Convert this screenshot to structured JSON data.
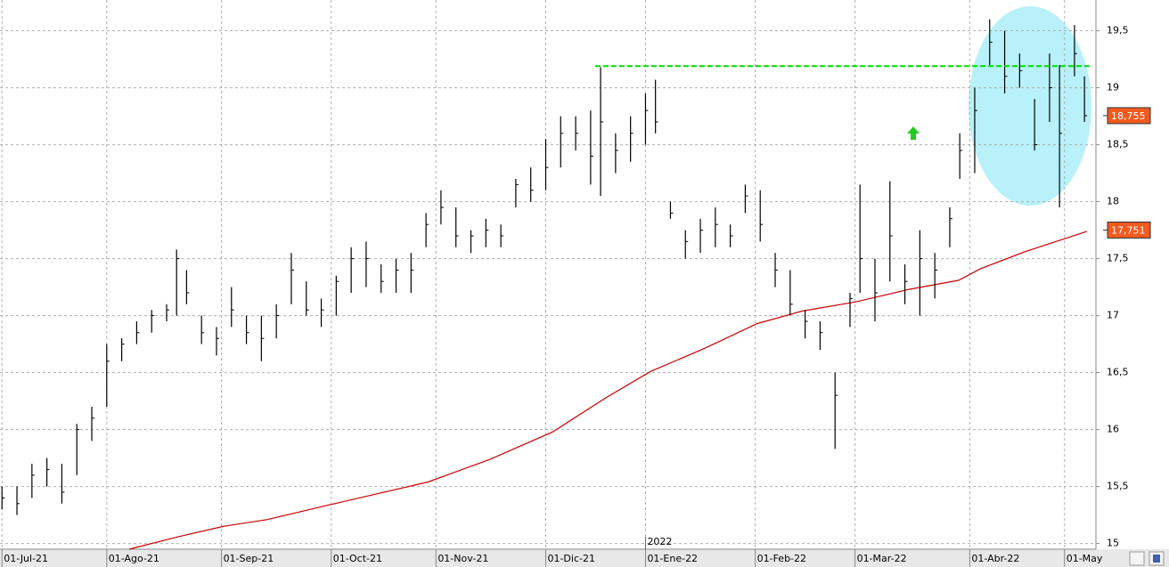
{
  "chart_data": {
    "type": "ohlc",
    "xlim": [
      -0.4,
      219.3
    ],
    "xticks": [
      {
        "value": 0,
        "label": "01-Jul-21"
      },
      {
        "value": 21,
        "label": "01-Ago-21"
      },
      {
        "value": 44,
        "label": "01-Sep-21"
      },
      {
        "value": 66,
        "label": "01-Oct-21"
      },
      {
        "value": 87,
        "label": "01-Nov-21"
      },
      {
        "value": 109,
        "label": "01-Dic-21"
      },
      {
        "value": 129,
        "label": "01-Ene-22"
      },
      {
        "value": 151,
        "label": "01-Feb-22"
      },
      {
        "value": 171,
        "label": "01-Mar-22"
      },
      {
        "value": 194,
        "label": "01-Abr-22"
      },
      {
        "value": 213,
        "label": "01-May"
      }
    ],
    "year_label": "2022",
    "ylim": [
      14.95,
      19.77
    ],
    "yticks": [
      15,
      {
        "value": 15.5,
        "label": "15,5"
      },
      16,
      {
        "value": 16.5,
        "label": "16,5"
      },
      17,
      {
        "value": 17.5,
        "label": "17,5"
      },
      18,
      {
        "value": 18.5,
        "label": "18,5"
      },
      19,
      {
        "value": 19.5,
        "label": "19,5"
      }
    ],
    "grid": true,
    "bars": {
      "color": "#000000",
      "x": [
        0,
        3,
        6,
        9,
        12,
        15,
        18,
        21,
        24,
        27,
        30,
        33,
        35,
        37,
        40,
        43,
        46,
        49,
        52,
        55,
        58,
        61,
        64,
        67,
        70,
        73,
        76,
        79,
        82,
        85,
        88,
        91,
        94,
        97,
        100,
        103,
        106,
        109,
        112,
        115,
        118,
        120,
        123,
        126,
        129,
        131,
        134,
        137,
        140,
        143,
        146,
        149,
        152,
        155,
        158,
        161,
        164,
        167,
        170,
        172,
        175,
        178,
        181,
        184,
        187,
        190,
        192,
        195,
        198,
        201,
        204,
        207,
        210,
        212,
        215,
        217
      ],
      "high": [
        15.5,
        15.5,
        15.7,
        15.75,
        15.7,
        16.05,
        16.2,
        16.75,
        16.8,
        16.95,
        17.05,
        17.1,
        17.58,
        17.4,
        17.0,
        16.9,
        17.25,
        17.0,
        17.0,
        17.1,
        17.55,
        17.3,
        17.15,
        17.35,
        17.6,
        17.65,
        17.45,
        17.5,
        17.55,
        17.9,
        18.1,
        17.95,
        17.75,
        17.85,
        17.8,
        18.2,
        18.3,
        18.55,
        18.75,
        18.75,
        18.8,
        19.18,
        18.6,
        18.75,
        18.95,
        19.07,
        18.0,
        17.75,
        17.85,
        17.95,
        17.8,
        18.15,
        18.1,
        17.55,
        17.4,
        17.05,
        16.95,
        16.5,
        17.2,
        18.15,
        17.5,
        18.18,
        17.45,
        17.75,
        17.55,
        17.95,
        18.6,
        19.0,
        19.6,
        19.5,
        19.3,
        18.9,
        19.3,
        19.2,
        19.55,
        19.1
      ],
      "low": [
        15.3,
        15.25,
        15.4,
        15.5,
        15.35,
        15.6,
        15.9,
        16.2,
        16.6,
        16.75,
        16.85,
        16.95,
        17.0,
        17.1,
        16.75,
        16.65,
        16.9,
        16.75,
        16.6,
        16.8,
        17.1,
        17.0,
        16.9,
        17.0,
        17.2,
        17.25,
        17.2,
        17.2,
        17.2,
        17.6,
        17.8,
        17.6,
        17.55,
        17.6,
        17.6,
        17.95,
        18.0,
        18.1,
        18.3,
        18.45,
        18.15,
        18.05,
        18.25,
        18.35,
        18.5,
        18.6,
        17.85,
        17.5,
        17.55,
        17.6,
        17.6,
        17.9,
        17.65,
        17.25,
        17.0,
        16.8,
        16.7,
        15.83,
        16.9,
        17.2,
        16.95,
        17.3,
        17.1,
        17.0,
        17.15,
        17.6,
        18.2,
        18.25,
        19.2,
        18.95,
        19.0,
        18.45,
        18.7,
        17.95,
        19.1,
        18.7
      ],
      "close": [
        15.4,
        15.35,
        15.6,
        15.65,
        15.45,
        16.0,
        16.1,
        16.6,
        16.75,
        16.85,
        17.0,
        17.05,
        17.5,
        17.2,
        16.85,
        16.8,
        17.05,
        16.85,
        16.8,
        17.0,
        17.4,
        17.05,
        17.05,
        17.3,
        17.5,
        17.5,
        17.3,
        17.4,
        17.4,
        17.8,
        17.95,
        17.7,
        17.7,
        17.75,
        17.7,
        18.15,
        18.1,
        18.3,
        18.6,
        18.6,
        18.4,
        18.7,
        18.45,
        18.6,
        18.8,
        18.7,
        17.9,
        17.65,
        17.75,
        17.8,
        17.7,
        18.05,
        17.8,
        17.4,
        17.1,
        16.95,
        16.85,
        16.3,
        17.15,
        17.5,
        17.2,
        17.7,
        17.3,
        17.5,
        17.4,
        17.85,
        18.45,
        18.8,
        19.4,
        19.1,
        19.15,
        18.5,
        19.0,
        18.6,
        19.3,
        18.755
      ]
    },
    "moving_average": {
      "color": "#cc0000",
      "x": [
        25.5,
        35.4,
        44.3,
        53.2,
        65.7,
        85.4,
        97.9,
        110.4,
        121.1,
        130.0,
        140.7,
        151.4,
        160.4,
        171.1,
        181.8,
        191.8,
        196.1,
        205.0,
        217.5
      ],
      "values": [
        14.95,
        15.06,
        15.15,
        15.21,
        15.34,
        15.54,
        15.74,
        15.98,
        16.28,
        16.51,
        16.71,
        16.93,
        17.04,
        17.12,
        17.23,
        17.31,
        17.41,
        17.56,
        17.74
      ]
    },
    "resistance": {
      "color": "#00dd00",
      "x": [
        118.9,
        218.4
      ],
      "values": [
        19.19,
        19.19
      ]
    },
    "price_tags": [
      {
        "value": 18.755,
        "label": "18,755"
      },
      {
        "value": 17.751,
        "label": "17,751"
      }
    ]
  }
}
